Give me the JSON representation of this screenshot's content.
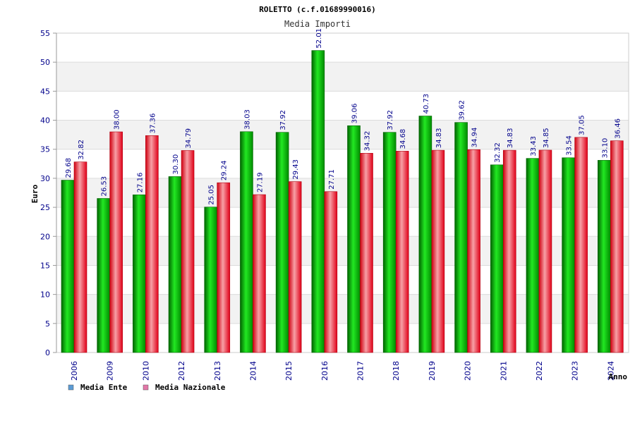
{
  "chart_data": {
    "type": "bar",
    "title": "ROLETTO (c.f.01689990016)",
    "subtitle": "Media Importi",
    "xlabel": "Anno",
    "ylabel": "Euro",
    "ylim": [
      0,
      55
    ],
    "y_ticks": [
      "0",
      "5",
      "10",
      "15",
      "20",
      "25",
      "30",
      "35",
      "40",
      "45",
      "50",
      "55"
    ],
    "grid": true,
    "legend_position": "bottom-left",
    "categories": [
      "2006",
      "2009",
      "2010",
      "2012",
      "2013",
      "2014",
      "2015",
      "2016",
      "2017",
      "2018",
      "2019",
      "2020",
      "2021",
      "2022",
      "2023",
      "2024"
    ],
    "series": [
      {
        "name": "Media Ente",
        "legend_color": "#5b9bd5",
        "bar_color": "#00b400",
        "values": [
          29.68,
          26.53,
          27.16,
          30.3,
          25.05,
          38.03,
          37.92,
          52.01,
          39.06,
          37.92,
          40.73,
          39.62,
          32.32,
          33.43,
          33.54,
          33.1
        ],
        "labels": [
          "29.68",
          "26.53",
          "27.16",
          "30.30",
          "25.05",
          "38.03",
          "37.92",
          "52.01",
          "39.06",
          "37.92",
          "40.73",
          "39.62",
          "32.32",
          "33.43",
          "33.54",
          "33.10"
        ]
      },
      {
        "name": "Media Nazionale",
        "legend_color": "#e377a8",
        "bar_color": "#e8202a",
        "values": [
          32.82,
          38.0,
          37.36,
          34.79,
          29.24,
          27.19,
          29.43,
          27.71,
          34.32,
          34.68,
          34.83,
          34.94,
          34.83,
          34.85,
          37.05,
          36.46
        ],
        "labels": [
          "32.82",
          "38.00",
          "37.36",
          "34.79",
          "29.24",
          "27.19",
          "29.43",
          "27.71",
          "34.32",
          "34.68",
          "34.83",
          "34.94",
          "34.83",
          "34.85",
          "37.05",
          "36.46"
        ]
      }
    ]
  }
}
